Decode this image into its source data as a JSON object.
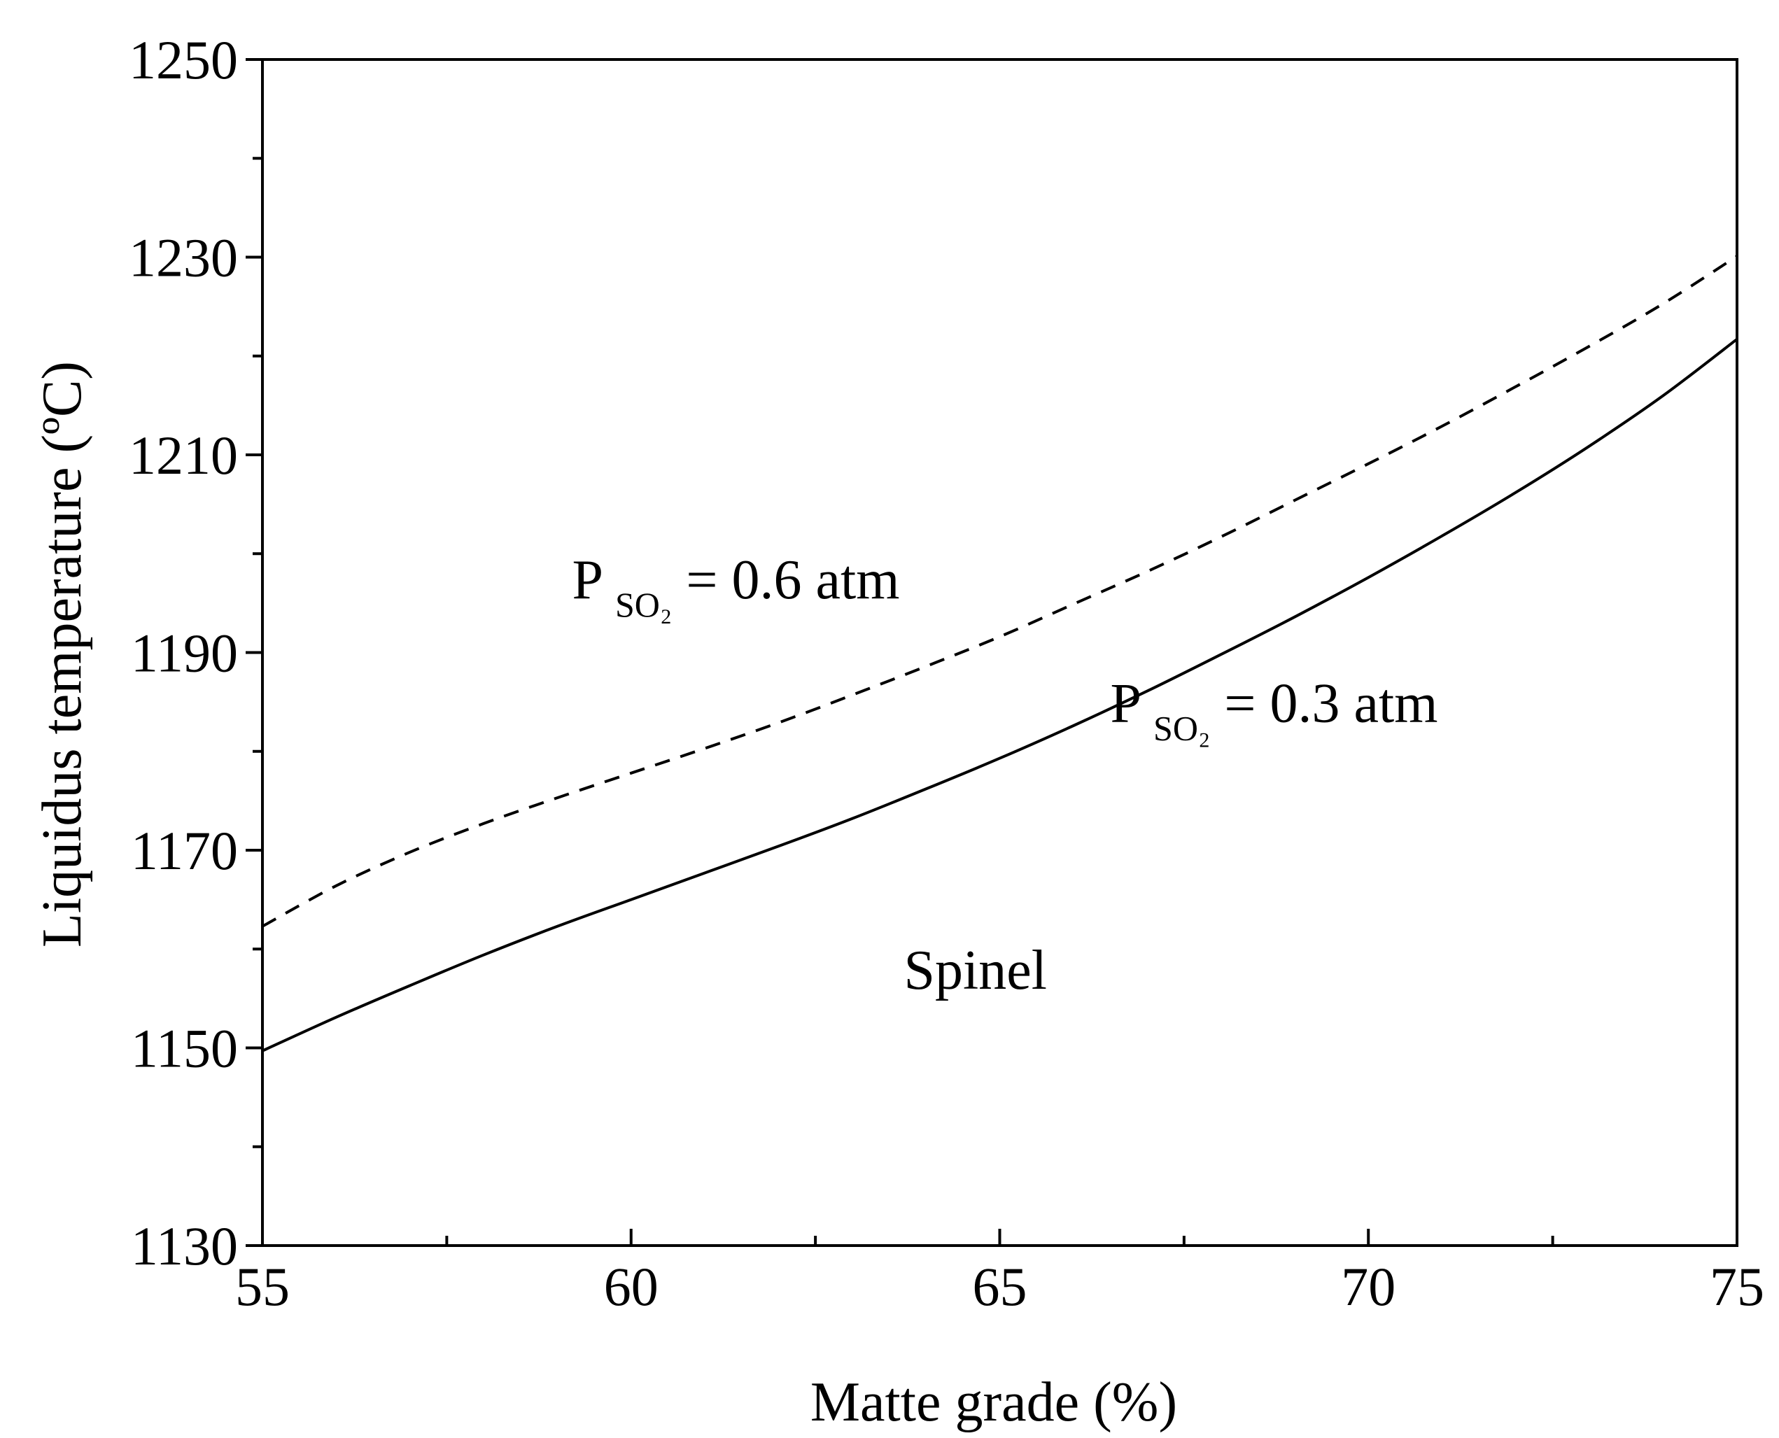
{
  "chart_data": {
    "type": "line",
    "title": "",
    "xlabel": "Matte grade (%)",
    "ylabel": "Liquidus temperature (ºC)",
    "xlim": [
      55,
      75
    ],
    "ylim": [
      1130,
      1250
    ],
    "xticks": [
      55,
      60,
      65,
      70,
      75
    ],
    "yticks": [
      1130,
      1150,
      1170,
      1190,
      1210,
      1230,
      1250
    ],
    "x_minor_step": 2.5,
    "y_minor_step": 10,
    "grid": false,
    "series": [
      {
        "name": "PSO2 = 0.6 atm",
        "style": "dashed",
        "color": "#000000",
        "x": [
          55,
          56,
          57,
          58,
          59,
          60,
          61,
          62,
          63,
          64,
          65,
          66,
          67,
          68,
          69,
          70,
          71,
          72,
          73,
          74,
          75
        ],
        "y": [
          1162.3,
          1166.4,
          1169.8,
          1172.7,
          1175.3,
          1177.8,
          1180.3,
          1182.9,
          1185.7,
          1188.6,
          1191.6,
          1194.9,
          1198.2,
          1201.7,
          1205.4,
          1209.1,
          1212.9,
          1216.9,
          1221.0,
          1225.3,
          1230.1
        ]
      },
      {
        "name": "PSO2 = 0.3 atm",
        "style": "solid",
        "color": "#000000",
        "x": [
          55,
          56,
          57,
          58,
          59,
          60,
          61,
          62,
          63,
          64,
          65,
          66,
          67,
          68,
          69,
          70,
          71,
          72,
          73,
          74,
          75
        ],
        "y": [
          1149.7,
          1153.1,
          1156.3,
          1159.4,
          1162.3,
          1165.0,
          1167.7,
          1170.4,
          1173.2,
          1176.2,
          1179.3,
          1182.6,
          1186.1,
          1189.8,
          1193.6,
          1197.6,
          1201.8,
          1206.2,
          1210.9,
          1216.0,
          1221.7
        ]
      }
    ],
    "annotations": [
      {
        "id": "upper",
        "main": "P",
        "sub": "SO₂",
        "rest": " = 0.6 atm",
        "x": 59.2,
        "y": 1195.5
      },
      {
        "id": "lower",
        "main": "P",
        "sub": "SO₂",
        "rest": " = 0.3 atm",
        "x": 66.5,
        "y": 1183.0
      },
      {
        "id": "region",
        "text": "Spinel",
        "x": 63.7,
        "y": 1156.0
      }
    ]
  }
}
